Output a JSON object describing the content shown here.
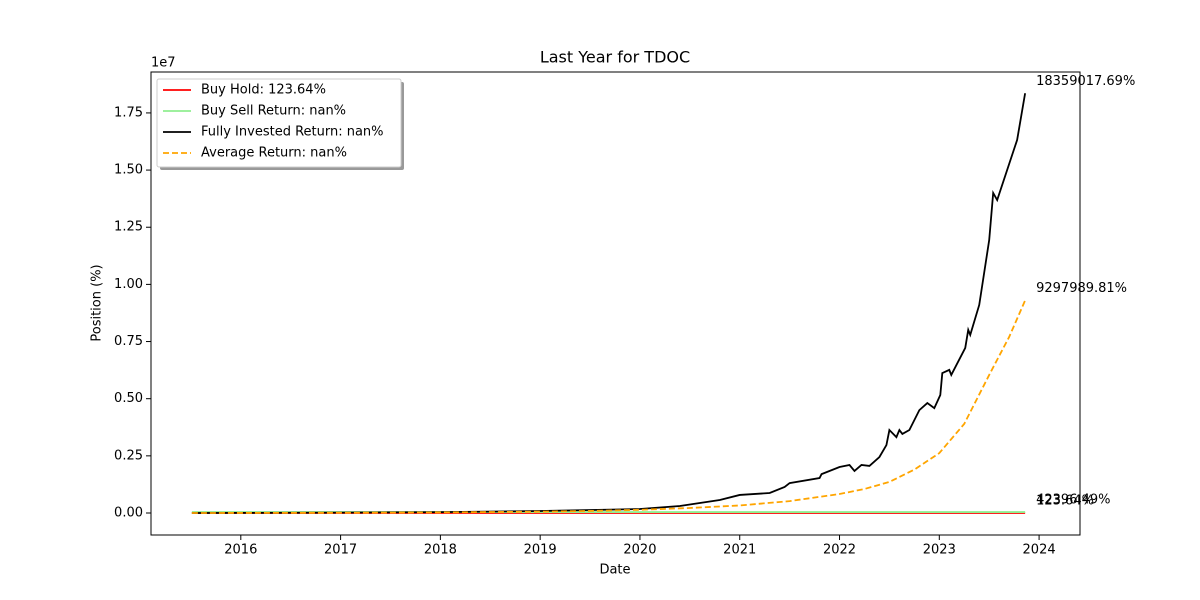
{
  "chart_data": {
    "type": "line",
    "title": "Last Year for TDOC",
    "x_label": "Date",
    "y_label": "Position (%)",
    "y_offset_label": "1e7",
    "xlim": [
      2015.1,
      2024.41
    ],
    "ylim": [
      -962000,
      19290000
    ],
    "xticks": [
      2016,
      2017,
      2018,
      2019,
      2020,
      2021,
      2022,
      2023,
      2024
    ],
    "yticks": [
      {
        "value": 0,
        "label": "0.00"
      },
      {
        "value": 2500000,
        "label": "0.25"
      },
      {
        "value": 5000000,
        "label": "0.50"
      },
      {
        "value": 7500000,
        "label": "0.75"
      },
      {
        "value": 10000000,
        "label": "1.00"
      },
      {
        "value": 12500000,
        "label": "1.25"
      },
      {
        "value": 15000000,
        "label": "1.50"
      },
      {
        "value": 17500000,
        "label": "1.75"
      }
    ],
    "grid": false,
    "legend": "upper left",
    "series": [
      {
        "name": "Buy Hold: 123.64%",
        "color": "#ff0000",
        "dash": false,
        "x": [
          2015.51,
          2023.86
        ],
        "values": [
          100,
          223.64
        ],
        "end_label": "123.64%"
      },
      {
        "name": "Buy Sell Return: nan%",
        "color": "#90ee90",
        "dash": false,
        "x": [
          2015.51,
          2023.86
        ],
        "values": [
          42396.49,
          42396.49
        ],
        "end_label": "42396.49%"
      },
      {
        "name": "Fully Invested Return: nan%",
        "color": "#000000",
        "dash": false,
        "x": [
          2015.51,
          2016,
          2017,
          2018,
          2019,
          2020,
          2020.4,
          2020.8,
          2021,
          2021.3,
          2021.45,
          2021.5,
          2021.8,
          2021.82,
          2022,
          2022.1,
          2022.15,
          2022.22,
          2022.3,
          2022.4,
          2022.47,
          2022.5,
          2022.57,
          2022.6,
          2022.63,
          2022.7,
          2022.8,
          2022.88,
          2022.95,
          2023.01,
          2023.03,
          2023.1,
          2023.12,
          2023.26,
          2023.29,
          2023.31,
          2023.4,
          2023.5,
          2023.54,
          2023.58,
          2023.78,
          2023.86
        ],
        "values": [
          0,
          5000,
          15000,
          40000,
          87000,
          175000,
          306000,
          570000,
          790000,
          875000,
          1140000,
          1310000,
          1530000,
          1700000,
          2010000,
          2100000,
          1840000,
          2100000,
          2060000,
          2450000,
          2970000,
          3630000,
          3320000,
          3630000,
          3460000,
          3630000,
          4500000,
          4810000,
          4590000,
          5160000,
          6120000,
          6260000,
          6040000,
          7220000,
          8010000,
          7790000,
          9100000,
          11940000,
          14000000,
          13690000,
          16320000,
          18359017.69
        ],
        "end_label": "18359017.69%"
      },
      {
        "name": "Average Return: nan%",
        "color": "#ffa500",
        "dash": true,
        "x": [
          2015.51,
          2017,
          2018,
          2019,
          2019.5,
          2020,
          2020.5,
          2021,
          2021.5,
          2022,
          2022.25,
          2022.5,
          2022.75,
          2023,
          2023.25,
          2023.5,
          2023.7,
          2023.86
        ],
        "values": [
          0,
          10000,
          25000,
          60000,
          90000,
          140000,
          220000,
          330000,
          520000,
          830000,
          1050000,
          1360000,
          1900000,
          2620000,
          3900000,
          6040000,
          7700000,
          9297989.81
        ],
        "end_label": "9297989.81%"
      }
    ]
  }
}
